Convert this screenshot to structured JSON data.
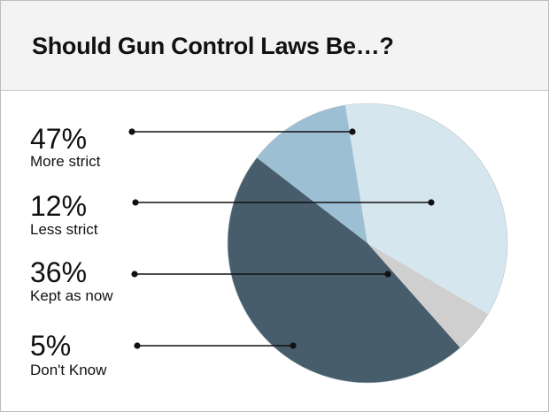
{
  "title": "Should Gun Control Laws Be…?",
  "chart_data": {
    "type": "pie",
    "title": "Should Gun Control Laws Be…?",
    "categories": [
      "More strict",
      "Less strict",
      "Kept as now",
      "Don't Know"
    ],
    "values": [
      47,
      12,
      36,
      5
    ],
    "value_labels": [
      "47%",
      "12%",
      "36%",
      "5%"
    ],
    "colors": [
      "#485d6b",
      "#9dbfd3",
      "#d6e6ef",
      "#cfcfcf"
    ],
    "legend": "left, with leader lines"
  }
}
